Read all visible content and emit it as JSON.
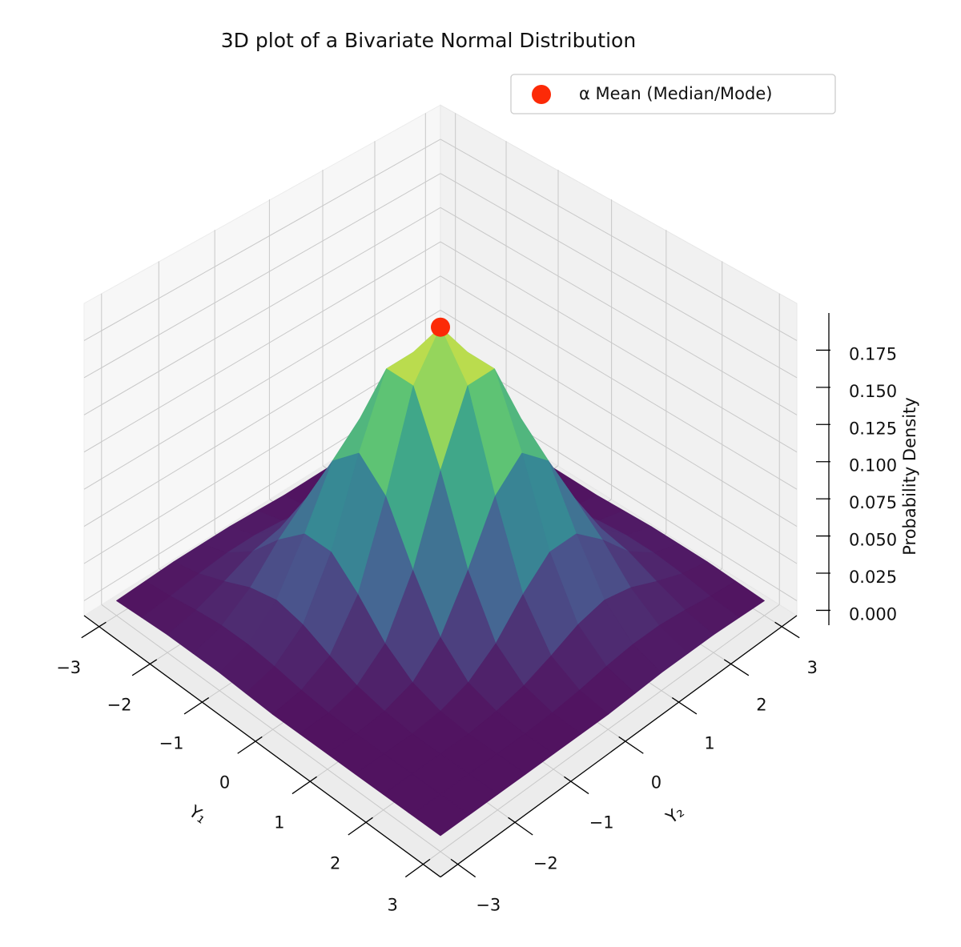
{
  "chart_data": {
    "type": "surface3d",
    "title": "3D plot of a Bivariate Normal Distribution",
    "xlabel": "Y₁",
    "ylabel": "Y₂",
    "zlabel": "Probability Density",
    "colormap": "viridis",
    "grid": true,
    "legend": "upper right",
    "x": [
      -3,
      -2.5,
      -2,
      -1.5,
      -1,
      -0.5,
      0,
      0.5,
      1,
      1.5,
      2,
      2.5,
      3
    ],
    "y": [
      -3,
      -2.5,
      -2,
      -1.5,
      -1,
      -0.5,
      0,
      0.5,
      1,
      1.5,
      2,
      2.5,
      3
    ],
    "z": [
      [
        0,
        0.001,
        0.002,
        0.002,
        0.002,
        0.001,
        0,
        0,
        0,
        0,
        0,
        0,
        0
      ],
      [
        0.001,
        0.003,
        0.006,
        0.008,
        0.008,
        0.006,
        0.003,
        0.001,
        0,
        0,
        0,
        0,
        0
      ],
      [
        0.002,
        0.006,
        0.013,
        0.021,
        0.025,
        0.021,
        0.013,
        0.006,
        0.002,
        0,
        0,
        0,
        0
      ],
      [
        0.002,
        0.008,
        0.021,
        0.041,
        0.057,
        0.057,
        0.041,
        0.021,
        0.008,
        0.002,
        0,
        0,
        0
      ],
      [
        0.002,
        0.008,
        0.025,
        0.057,
        0.094,
        0.111,
        0.094,
        0.057,
        0.025,
        0.008,
        0.002,
        0,
        0
      ],
      [
        0.001,
        0.006,
        0.021,
        0.057,
        0.111,
        0.156,
        0.156,
        0.111,
        0.057,
        0.021,
        0.006,
        0.001,
        0
      ],
      [
        0,
        0.003,
        0.013,
        0.041,
        0.094,
        0.156,
        0.184,
        0.156,
        0.094,
        0.041,
        0.013,
        0.003,
        0
      ],
      [
        0,
        0.001,
        0.006,
        0.021,
        0.057,
        0.111,
        0.156,
        0.156,
        0.111,
        0.057,
        0.021,
        0.006,
        0.001
      ],
      [
        0,
        0,
        0.002,
        0.008,
        0.025,
        0.057,
        0.094,
        0.111,
        0.094,
        0.057,
        0.025,
        0.008,
        0.002
      ],
      [
        0,
        0,
        0,
        0.002,
        0.008,
        0.021,
        0.041,
        0.057,
        0.057,
        0.041,
        0.021,
        0.008,
        0.002
      ],
      [
        0,
        0,
        0,
        0,
        0.002,
        0.006,
        0.013,
        0.021,
        0.025,
        0.021,
        0.013,
        0.006,
        0.002
      ],
      [
        0,
        0,
        0,
        0,
        0,
        0.001,
        0.003,
        0.006,
        0.008,
        0.008,
        0.006,
        0.003,
        0.001
      ],
      [
        0,
        0,
        0,
        0,
        0,
        0,
        0,
        0.001,
        0.002,
        0.002,
        0.002,
        0.001,
        0
      ]
    ],
    "xlim": [
      -3.3,
      3.3
    ],
    "ylim": [
      -3.3,
      3.3
    ],
    "zlim": [
      -0.01,
      0.2
    ],
    "xticks": [
      {
        "value": -3,
        "label": "−3"
      },
      {
        "value": -2,
        "label": "−2"
      },
      {
        "value": -1,
        "label": "−1"
      },
      0,
      1,
      2,
      3
    ],
    "yticks": [
      {
        "value": -3,
        "label": "−3"
      },
      {
        "value": -2,
        "label": "−2"
      },
      {
        "value": -1,
        "label": "−1"
      },
      0,
      1,
      2,
      3
    ],
    "zticks": [
      {
        "value": 0,
        "label": "0.000"
      },
      {
        "value": 0.025,
        "label": "0.025"
      },
      {
        "value": 0.05,
        "label": "0.050"
      },
      {
        "value": 0.075,
        "label": "0.075"
      },
      {
        "value": 0.1,
        "label": "0.100"
      },
      {
        "value": 0.125,
        "label": "0.125"
      },
      {
        "value": 0.15,
        "label": "0.150"
      },
      {
        "value": 0.175,
        "label": "0.175"
      }
    ],
    "series": [
      {
        "type": "scatter",
        "name": "α Mean (Median/Mode)",
        "color": "#fc2a07",
        "x": [
          0
        ],
        "y": [
          0
        ],
        "z": [
          0.184
        ]
      }
    ]
  }
}
